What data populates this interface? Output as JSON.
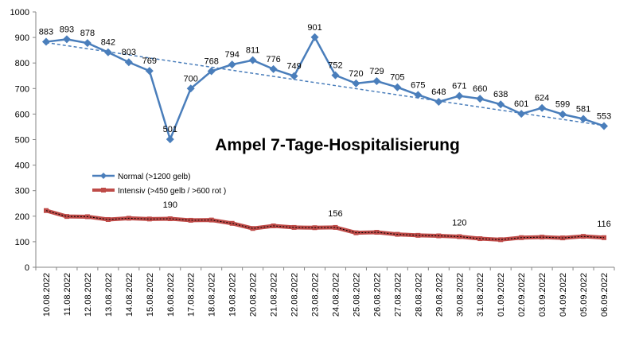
{
  "chart_data": {
    "type": "line",
    "title": "Ampel 7-Tage-Hospitalisierung",
    "xlabel": "",
    "ylabel": "",
    "ylim": [
      0,
      1000
    ],
    "yticks": [
      0,
      100,
      200,
      300,
      400,
      500,
      600,
      700,
      800,
      900,
      1000
    ],
    "grid": false,
    "legend_position": "center-left",
    "categories": [
      "10.08.2022",
      "11.08.2022",
      "12.08.2022",
      "13.08.2022",
      "14.08.2022",
      "15.08.2022",
      "16.08.2022",
      "17.08.2022",
      "18.08.2022",
      "19.08.2022",
      "20.08.2022",
      "21.08.2022",
      "22.08.2022",
      "23.08.2022",
      "24.08.2022",
      "25.08.2022",
      "26.08.2022",
      "27.08.2022",
      "28.08.2022",
      "29.08.2022",
      "30.08.2022",
      "31.08.2022",
      "01.09.2022",
      "02.09.2022",
      "03.09.2022",
      "04.09.2022",
      "05.09.2022",
      "06.09.2022"
    ],
    "series": [
      {
        "name": "Normal (>1200 gelb)",
        "color": "#4a7ebb",
        "marker": "diamond",
        "values": [
          883,
          893,
          878,
          842,
          803,
          769,
          501,
          700,
          768,
          794,
          811,
          776,
          749,
          901,
          752,
          720,
          729,
          705,
          675,
          648,
          671,
          660,
          638,
          601,
          624,
          599,
          581,
          553
        ],
        "labels": [
          "883",
          "893",
          "878",
          "842",
          "803",
          "769",
          "501",
          "700",
          "768",
          "794",
          "811",
          "776",
          "749",
          "901",
          "752",
          "720",
          "729",
          "705",
          "675",
          "648",
          "671",
          "660",
          "638",
          "601",
          "624",
          "599",
          "581",
          "553"
        ],
        "trendline": [
          880,
          555
        ]
      },
      {
        "name": "Intensiv (>450 gelb / >600 rot )",
        "color": "#be4b48",
        "marker": "square",
        "values": [
          222,
          199,
          198,
          187,
          192,
          189,
          190,
          184,
          185,
          172,
          152,
          162,
          156,
          155,
          156,
          135,
          137,
          129,
          125,
          123,
          120,
          112,
          108,
          116,
          118,
          115,
          121,
          116
        ],
        "labels": {
          "6": "190",
          "14": "156",
          "20": "120",
          "27": "116"
        }
      }
    ]
  }
}
